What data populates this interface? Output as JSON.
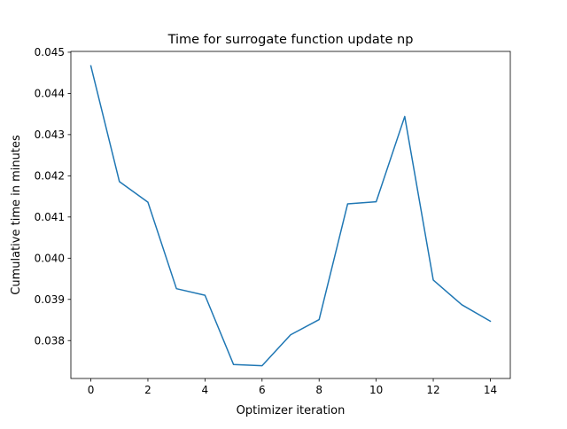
{
  "chart_data": {
    "type": "line",
    "title": "Time for surrogate function update np",
    "xlabel": "Optimizer iteration",
    "ylabel": "Cumulative time in minutes",
    "xlim": [
      -0.7,
      14.7
    ],
    "ylim": [
      0.03708,
      0.04502
    ],
    "xticks": [
      0,
      2,
      4,
      6,
      8,
      10,
      12,
      14
    ],
    "xtick_labels": [
      "0",
      "2",
      "4",
      "6",
      "8",
      "10",
      "12",
      "14"
    ],
    "yticks": [
      0.038,
      0.039,
      0.04,
      0.041,
      0.042,
      0.043,
      0.044,
      0.045
    ],
    "ytick_labels": [
      "0.038",
      "0.039",
      "0.040",
      "0.041",
      "0.042",
      "0.043",
      "0.044",
      "0.045"
    ],
    "grid": false,
    "series": [
      {
        "color": "#1f77b4",
        "x": [
          0,
          1,
          2,
          3,
          4,
          5,
          6,
          7,
          8,
          9,
          10,
          11,
          12,
          13,
          14
        ],
        "y": [
          0.04467,
          0.04186,
          0.04136,
          0.03926,
          0.0391,
          0.03742,
          0.03739,
          0.03814,
          0.03851,
          0.04132,
          0.04137,
          0.04344,
          0.03947,
          0.03887,
          0.03847
        ]
      }
    ]
  }
}
